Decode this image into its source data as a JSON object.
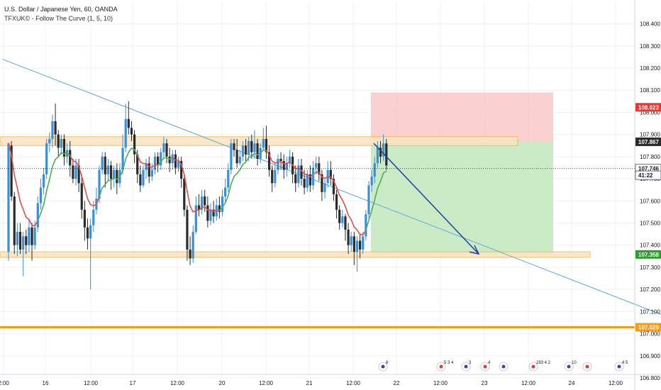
{
  "header": {
    "title": "U.S. Dollar / Japanese Yen, 60, OANDA",
    "indicator": "TFXUK© - Follow The Curve (1, 5, 10)"
  },
  "colors": {
    "up": "#3a8fd9",
    "down": "#2b2b2b",
    "ema_fast": "#e0504d",
    "ema_slow": "#4caf50",
    "trendline": "#5aa8d8",
    "zone_fill": "#fbe4bf",
    "zone_stroke": "#f0b44a",
    "support_line": "#f59a1b",
    "stop_zone": "#f9c4c4",
    "target_zone": "#b9e4b4",
    "arrow": "#1e3fa0",
    "stop_label": "#e53935",
    "target_label": "#2e9e2e",
    "price_label": "#2b2b2b",
    "support_label": "#f59a1b"
  },
  "chart_data": {
    "type": "candlestick",
    "symbol": "U.S. Dollar / Japanese Yen",
    "interval": "60",
    "source": "OANDA",
    "ylim": [
      106.77,
      108.52
    ],
    "y_ticks": [
      "108.400",
      "108.300",
      "108.200",
      "108.100",
      "108.000",
      "107.900",
      "107.800",
      "107.700",
      "107.600",
      "107.500",
      "107.400",
      "107.300",
      "107.200",
      "107.100",
      "107.000",
      "106.900",
      "106.800"
    ],
    "x_ticks": [
      "2:00",
      "16",
      "12:00",
      "17",
      "12:00",
      "20",
      "12:00",
      "21",
      "12:00",
      "22",
      "12:00",
      "23",
      "12:00",
      "24",
      "12:00"
    ],
    "price_labels": [
      {
        "value": 108.023,
        "text": "108.023",
        "kind": "stop"
      },
      {
        "value": 107.867,
        "text": "107.867",
        "kind": "entry"
      },
      {
        "value": 107.746,
        "text": "107.746",
        "kind": "last"
      },
      {
        "value": 107.716,
        "text": "41:22",
        "kind": "countdown"
      },
      {
        "value": 107.358,
        "text": "107.358",
        "kind": "target"
      },
      {
        "value": 107.029,
        "text": "107.029",
        "kind": "support"
      }
    ],
    "horizontal_levels": [
      {
        "name": "resistance-zone",
        "low": 107.85,
        "high": 107.89
      },
      {
        "name": "support-zone",
        "low": 107.345,
        "high": 107.37
      },
      {
        "name": "support-line",
        "value": 107.029
      }
    ],
    "trendline": [
      {
        "bar": -2,
        "price": 108.24
      },
      {
        "bar": 230,
        "price": 107.05
      }
    ],
    "trade": {
      "entry": 107.867,
      "stop": 108.023,
      "target": 107.358
    },
    "forecast_arrow": {
      "from": 107.86,
      "to": 107.36
    },
    "event_markers": [
      "8",
      "5 3 4",
      "3",
      "4",
      "",
      "283 4 2",
      "10",
      "",
      "4 5"
    ],
    "candles": [
      [
        107.37,
        107.86,
        107.33,
        107.85
      ],
      [
        107.85,
        107.62,
        107.6,
        107.87
      ],
      [
        107.62,
        107.4,
        107.36,
        107.64
      ],
      [
        107.4,
        107.46,
        107.35,
        107.5
      ],
      [
        107.46,
        107.38,
        107.36,
        107.5
      ],
      [
        107.38,
        107.44,
        107.26,
        107.46
      ],
      [
        107.44,
        107.4,
        107.36,
        107.47
      ],
      [
        107.4,
        107.48,
        107.37,
        107.52
      ],
      [
        107.48,
        107.4,
        107.33,
        107.5
      ],
      [
        107.4,
        107.48,
        107.38,
        107.51
      ],
      [
        107.48,
        107.59,
        107.46,
        107.62
      ],
      [
        107.59,
        107.66,
        107.56,
        107.7
      ],
      [
        107.66,
        107.72,
        107.63,
        107.75
      ],
      [
        107.72,
        107.86,
        107.7,
        107.88
      ],
      [
        107.86,
        107.88,
        107.82,
        107.91
      ],
      [
        107.88,
        107.96,
        107.84,
        107.99
      ],
      [
        107.96,
        107.9,
        107.85,
        108.04
      ],
      [
        107.9,
        107.84,
        107.8,
        107.92
      ],
      [
        107.84,
        107.88,
        107.81,
        107.9
      ],
      [
        107.88,
        107.8,
        107.76,
        107.9
      ],
      [
        107.8,
        107.83,
        107.77,
        107.86
      ],
      [
        107.83,
        107.76,
        107.71,
        107.87
      ],
      [
        107.76,
        107.7,
        107.68,
        107.79
      ],
      [
        107.7,
        107.76,
        107.67,
        107.79
      ],
      [
        107.76,
        107.68,
        107.64,
        107.79
      ],
      [
        107.68,
        107.56,
        107.52,
        107.72
      ],
      [
        107.56,
        107.48,
        107.42,
        107.6
      ],
      [
        107.48,
        107.43,
        107.38,
        107.52
      ],
      [
        107.43,
        107.49,
        107.2,
        107.52
      ],
      [
        107.49,
        107.56,
        107.46,
        107.6
      ],
      [
        107.56,
        107.61,
        107.54,
        107.66
      ],
      [
        107.61,
        107.74,
        107.59,
        107.76
      ],
      [
        107.74,
        107.8,
        107.72,
        107.82
      ],
      [
        107.8,
        107.72,
        107.66,
        107.82
      ],
      [
        107.72,
        107.76,
        107.69,
        107.79
      ],
      [
        107.76,
        107.7,
        107.65,
        107.78
      ],
      [
        107.7,
        107.74,
        107.66,
        107.76
      ],
      [
        107.74,
        107.68,
        107.63,
        107.77
      ],
      [
        107.68,
        107.74,
        107.66,
        107.77
      ],
      [
        107.74,
        107.84,
        107.72,
        107.9
      ],
      [
        107.84,
        107.97,
        107.82,
        108.04
      ],
      [
        107.97,
        107.93,
        107.9,
        108.05
      ],
      [
        107.93,
        107.9,
        107.87,
        107.96
      ],
      [
        107.9,
        107.81,
        107.77,
        107.92
      ],
      [
        107.81,
        107.72,
        107.68,
        107.83
      ],
      [
        107.72,
        107.67,
        107.64,
        107.76
      ],
      [
        107.67,
        107.74,
        107.66,
        107.76
      ],
      [
        107.74,
        107.77,
        107.7,
        107.79
      ],
      [
        107.77,
        107.71,
        107.68,
        107.8
      ],
      [
        107.71,
        107.74,
        107.69,
        107.77
      ],
      [
        107.74,
        107.8,
        107.72,
        107.82
      ],
      [
        107.8,
        107.76,
        107.73,
        107.82
      ],
      [
        107.76,
        107.82,
        107.74,
        107.84
      ],
      [
        107.82,
        107.86,
        107.79,
        107.89
      ],
      [
        107.86,
        107.8,
        107.77,
        107.88
      ],
      [
        107.8,
        107.77,
        107.73,
        107.84
      ],
      [
        107.77,
        107.81,
        107.74,
        107.83
      ],
      [
        107.81,
        107.75,
        107.72,
        107.83
      ],
      [
        107.75,
        107.78,
        107.73,
        107.8
      ],
      [
        107.78,
        107.7,
        107.66,
        107.8
      ],
      [
        107.7,
        107.56,
        107.53,
        107.72
      ],
      [
        107.56,
        107.38,
        107.33,
        107.58
      ],
      [
        107.38,
        107.34,
        107.31,
        107.44
      ],
      [
        107.34,
        107.46,
        107.32,
        107.49
      ],
      [
        107.46,
        107.58,
        107.45,
        107.62
      ],
      [
        107.58,
        107.56,
        107.53,
        107.63
      ],
      [
        107.56,
        107.62,
        107.54,
        107.65
      ],
      [
        107.62,
        107.58,
        107.55,
        107.65
      ],
      [
        107.58,
        107.51,
        107.48,
        107.62
      ],
      [
        107.51,
        107.56,
        107.49,
        107.59
      ],
      [
        107.56,
        107.53,
        107.5,
        107.6
      ],
      [
        107.53,
        107.58,
        107.51,
        107.61
      ],
      [
        107.58,
        107.55,
        107.52,
        107.62
      ],
      [
        107.55,
        107.62,
        107.53,
        107.65
      ],
      [
        107.62,
        107.66,
        107.59,
        107.7
      ],
      [
        107.66,
        107.74,
        107.64,
        107.77
      ],
      [
        107.74,
        107.86,
        107.72,
        107.88
      ],
      [
        107.86,
        107.83,
        107.8,
        107.88
      ],
      [
        107.83,
        107.77,
        107.75,
        107.88
      ],
      [
        107.77,
        107.8,
        107.76,
        107.83
      ],
      [
        107.8,
        107.85,
        107.78,
        107.87
      ],
      [
        107.85,
        107.81,
        107.78,
        107.88
      ],
      [
        107.81,
        107.87,
        107.78,
        107.89
      ],
      [
        107.87,
        107.82,
        107.79,
        107.9
      ],
      [
        107.82,
        107.86,
        107.79,
        107.92
      ],
      [
        107.86,
        107.79,
        107.76,
        107.88
      ],
      [
        107.79,
        107.84,
        107.77,
        107.86
      ],
      [
        107.84,
        107.88,
        107.83,
        107.93
      ],
      [
        107.88,
        107.82,
        107.79,
        107.94
      ],
      [
        107.82,
        107.74,
        107.71,
        107.85
      ],
      [
        107.74,
        107.68,
        107.64,
        107.76
      ],
      [
        107.68,
        107.74,
        107.66,
        107.77
      ],
      [
        107.74,
        107.79,
        107.72,
        107.81
      ],
      [
        107.79,
        107.78,
        107.74,
        107.82
      ],
      [
        107.78,
        107.74,
        107.7,
        107.81
      ],
      [
        107.74,
        107.77,
        107.71,
        107.8
      ],
      [
        107.77,
        107.8,
        107.75,
        107.83
      ],
      [
        107.8,
        107.72,
        107.68,
        107.82
      ],
      [
        107.72,
        107.68,
        107.64,
        107.76
      ],
      [
        107.68,
        107.76,
        107.66,
        107.79
      ],
      [
        107.76,
        107.7,
        107.67,
        107.79
      ],
      [
        107.7,
        107.66,
        107.63,
        107.74
      ],
      [
        107.66,
        107.72,
        107.64,
        107.74
      ],
      [
        107.72,
        107.67,
        107.64,
        107.76
      ],
      [
        107.67,
        107.75,
        107.65,
        107.78
      ],
      [
        107.75,
        107.77,
        107.72,
        107.8
      ],
      [
        107.77,
        107.72,
        107.69,
        107.8
      ],
      [
        107.72,
        107.64,
        107.6,
        107.74
      ],
      [
        107.64,
        107.68,
        107.61,
        107.7
      ],
      [
        107.68,
        107.74,
        107.66,
        107.78
      ],
      [
        107.74,
        107.7,
        107.67,
        107.78
      ],
      [
        107.7,
        107.63,
        107.6,
        107.72
      ],
      [
        107.63,
        107.56,
        107.52,
        107.65
      ],
      [
        107.56,
        107.5,
        107.47,
        107.58
      ],
      [
        107.5,
        107.53,
        107.48,
        107.56
      ],
      [
        107.53,
        107.47,
        107.42,
        107.54
      ],
      [
        107.47,
        107.4,
        107.36,
        107.5
      ],
      [
        107.4,
        107.44,
        107.37,
        107.46
      ],
      [
        107.44,
        107.37,
        107.31,
        107.46
      ],
      [
        107.37,
        107.42,
        107.28,
        107.44
      ],
      [
        107.42,
        107.38,
        107.34,
        107.45
      ],
      [
        107.38,
        107.44,
        107.36,
        107.46
      ],
      [
        107.44,
        107.54,
        107.42,
        107.56
      ],
      [
        107.54,
        107.67,
        107.52,
        107.69
      ],
      [
        107.67,
        107.71,
        107.64,
        107.74
      ],
      [
        107.71,
        107.77,
        107.68,
        107.8
      ],
      [
        107.77,
        107.84,
        107.75,
        107.87
      ],
      [
        107.84,
        107.8,
        107.77,
        107.87
      ],
      [
        107.8,
        107.86,
        107.78,
        107.9
      ],
      [
        107.86,
        107.76,
        107.74,
        107.88
      ]
    ]
  }
}
